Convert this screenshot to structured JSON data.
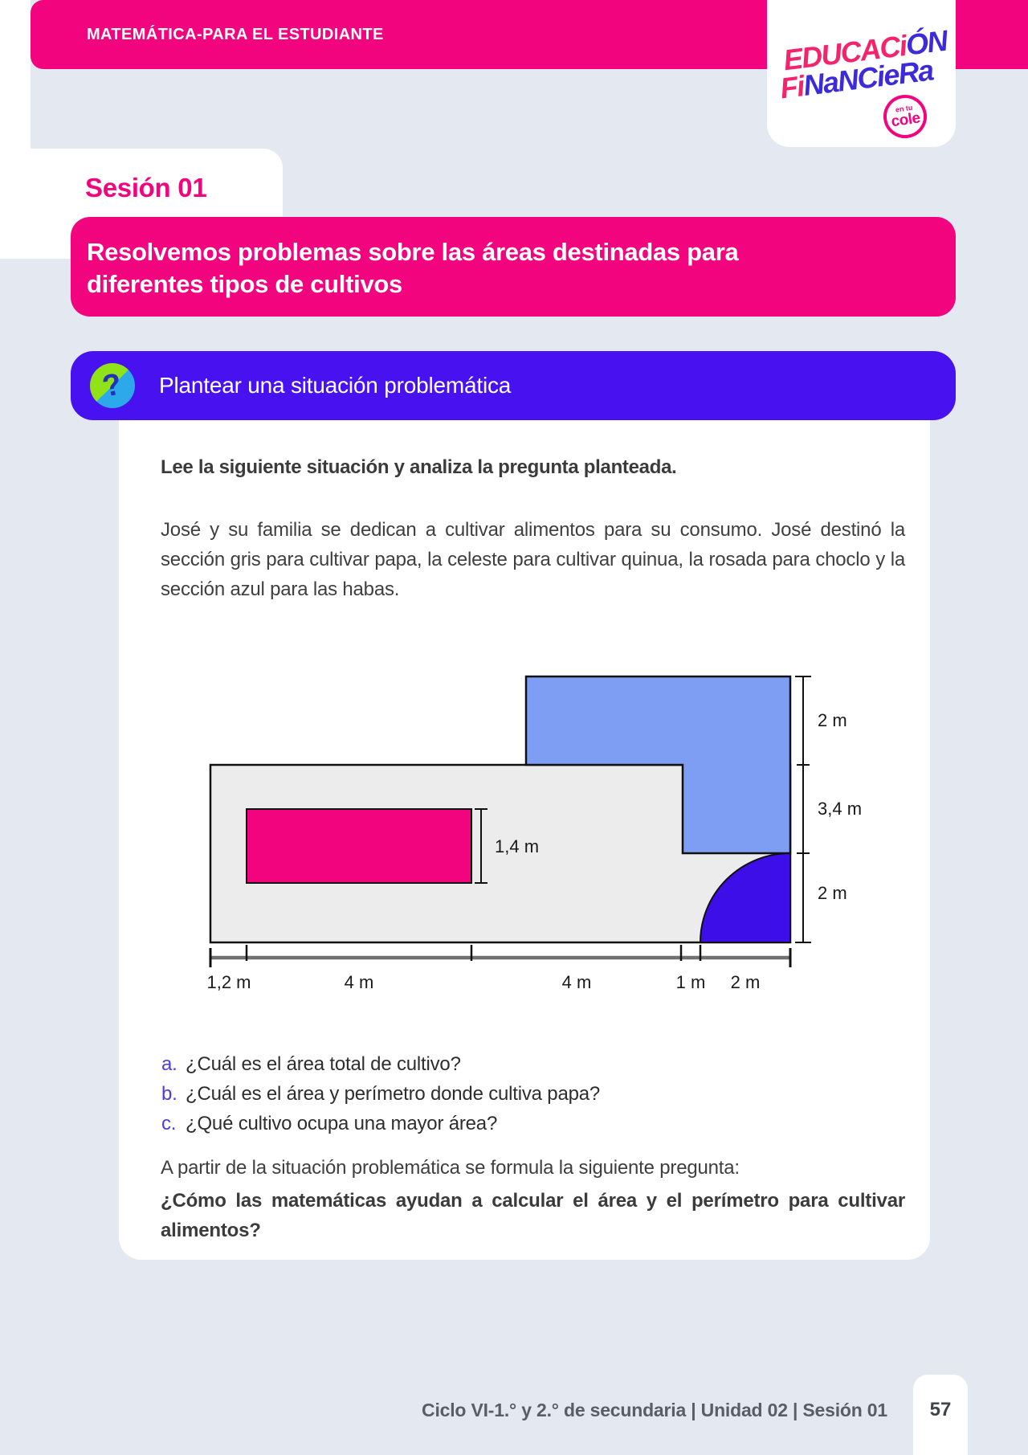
{
  "header": {
    "title": "MATEMÁTICA-PARA EL ESTUDIANTE"
  },
  "logo": {
    "line1_pink": "EDUCACi",
    "line1_blue": "ÓN",
    "line2_pink": "Fi",
    "line2_blue": "NaNCieRa",
    "badge_top": "en tu",
    "badge_bottom": "cole"
  },
  "session": {
    "label": "Sesión 01"
  },
  "title_banner": {
    "lines": [
      "Resolvemos problemas sobre las áreas destinadas para",
      "diferentes tipos de cultivos"
    ]
  },
  "section_banner": {
    "icon": "question-mark",
    "label": "Plantear una situación problemática"
  },
  "content": {
    "lead": "Lee la siguiente situación y analiza la pregunta planteada.",
    "paragraph": "José y su familia se dedican a cultivar alimentos para su consumo. José destinó la sección gris para cultivar papa, la celeste para cultivar quinua, la rosada para choclo y la sección azul para las habas.",
    "questions": [
      {
        "letter": "a.",
        "text": "¿Cuál es el área total de cultivo?"
      },
      {
        "letter": "b.",
        "text": "¿Cuál es el área y perímetro donde cultiva papa?"
      },
      {
        "letter": "c.",
        "text": "¿Qué cultivo ocupa una mayor área?"
      }
    ],
    "followup": "A partir de la situación problemática se formula la siguiente pregunta:",
    "key_question": "¿Cómo las matemáticas ayudan a calcular el área y el perímetro para cultivar alimentos?"
  },
  "figure": {
    "colors": {
      "field": "#ECECEC",
      "quinua": "#7E9EF3",
      "habas": "#3D0EE8",
      "choclo": "#F2047E",
      "outline": "#111111",
      "baseline": "#707070",
      "label": "#1A1A1A"
    },
    "inner_dim": "1,4 m",
    "right_dims": [
      "2 m",
      "3,4 m",
      "2 m"
    ],
    "bottom_dims": [
      "1,2 m",
      "4 m",
      "4 m",
      "1 m",
      "2 m"
    ]
  },
  "footer": {
    "breadcrumb": "Ciclo VI-1.° y 2.° de secundaria | Unidad 02 | Sesión 01",
    "page_number": "57"
  }
}
